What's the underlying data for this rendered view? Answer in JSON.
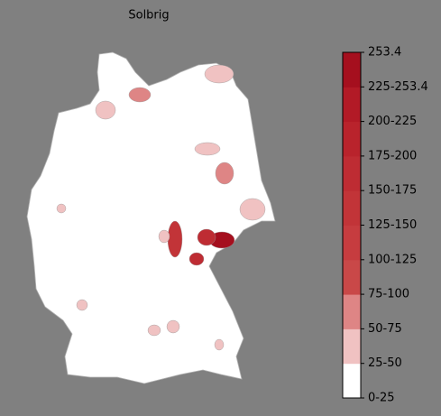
{
  "chart_data": {
    "type": "choropleth",
    "title": "Solbrig",
    "background": "#808080",
    "map_color": "#ffffff",
    "colorbar": {
      "labels": [
        "0-25",
        "25-50",
        "50-75",
        "75-100",
        "100-125",
        "125-150",
        "150-175",
        "175-200",
        "200-225",
        "225-253.4",
        "253.4"
      ],
      "colors": [
        "#ffffff",
        "#f0c2c2",
        "#de8585",
        "#c94848",
        "#c63c3f",
        "#c23438",
        "#be2c33",
        "#b9232c",
        "#b21a26",
        "#a50f1e"
      ]
    },
    "regions": [
      30,
      60,
      35,
      35,
      65,
      40,
      240,
      170,
      150,
      140,
      40,
      35,
      35,
      30,
      35,
      30
    ]
  }
}
